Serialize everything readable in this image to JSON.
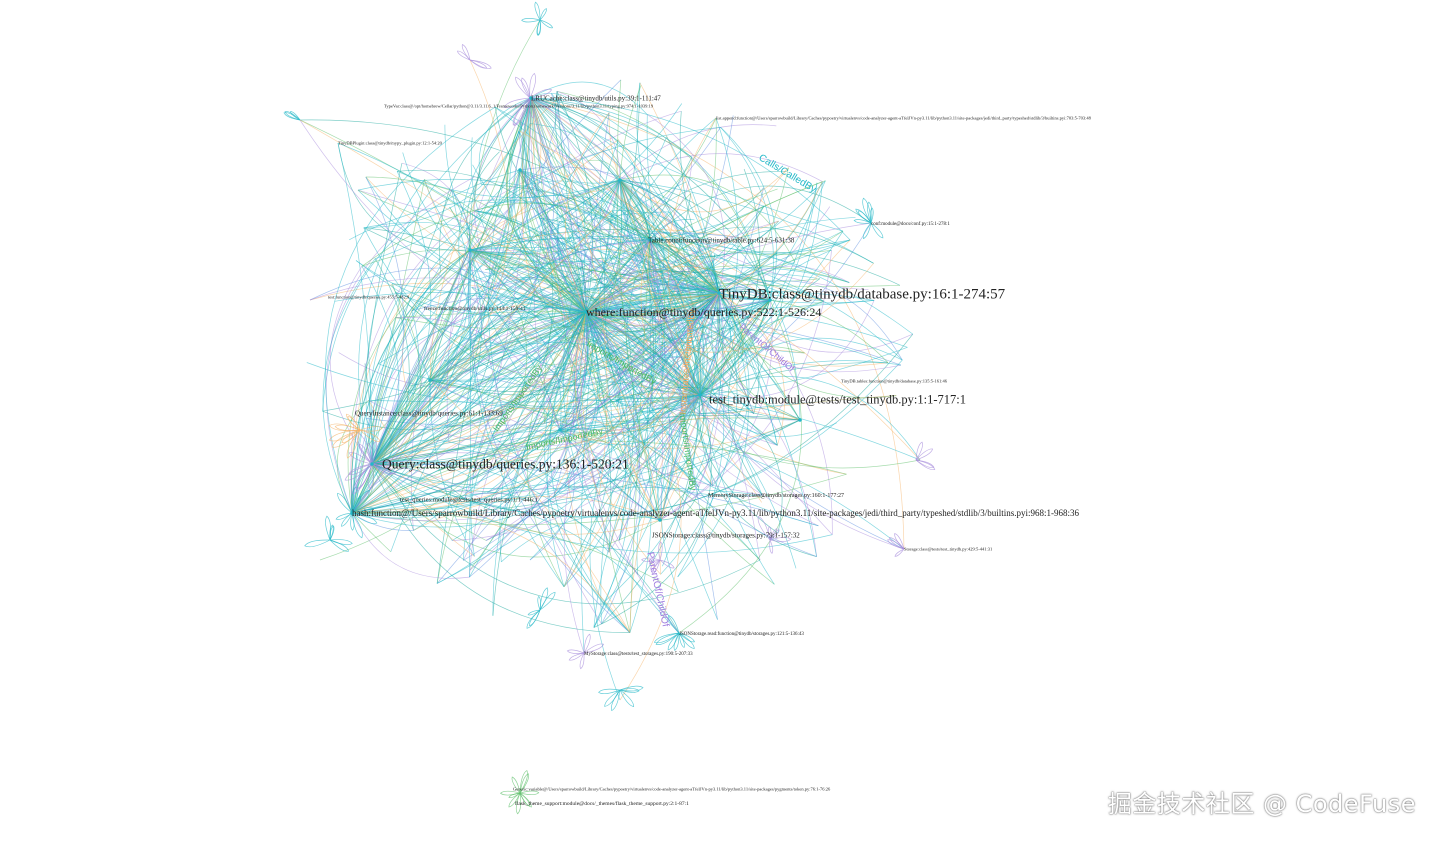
{
  "nodes": [
    {
      "id": "lru",
      "label": "LRUCache:class@tinydb/utils.py:39:1-111:47"
    },
    {
      "id": "typevar",
      "label": "TypeVar:class@/opt/homebrew/Cellar/python@3.11/3.11.6_1/Frameworks/Python.framework/Versions/3.11/lib/python3.11/typing.py:974:1-1039:19"
    },
    {
      "id": "listappend",
      "label": "list.append:function@/Users/sparrowbuild/Library/Caches/pypoetry/virtualenvs/code-analyzer-agent-aTfelJVn-py3.11/lib/python3.11/site-packages/jedi/third_party/typeshed/stdlib/3/builtins.pyi:703:5-703:48"
    },
    {
      "id": "plugin",
      "label": "TinyDBPlugin:class@tinydb/mypy_plugin.py:12:1-54:20"
    },
    {
      "id": "conf",
      "label": "conf:module@docs/conf.py:15:1-278:1"
    },
    {
      "id": "tablecount",
      "label": "Table.count:function@tinydb/table.py:624:5-631:38"
    },
    {
      "id": "tinydb",
      "label": "TinyDB:class@tinydb/database.py:16:1-274:57"
    },
    {
      "id": "where",
      "label": "where:function@tinydb/queries.py:522:1-526:24"
    },
    {
      "id": "test",
      "label": "test:function@tinydb/queries.py:455:5-482:9"
    },
    {
      "id": "freeze",
      "label": "freeze:function@tinydb/utils.py:144:1-159:41"
    },
    {
      "id": "testtinydb",
      "label": "test_tinydb:module@tests/test_tinydb.py:1:1-717:1"
    },
    {
      "id": "tables",
      "label": "TinyDB.tables:function@tinydb/database.py:135:5-161:46"
    },
    {
      "id": "queryinstance",
      "label": "QueryInstance:class@tinydb/queries.py:61:1-133:69"
    },
    {
      "id": "query",
      "label": "Query:class@tinydb/queries.py:136:1-520:21"
    },
    {
      "id": "testqueries",
      "label": "test_queries:module@tests/test_queries.py:1:1-446:1"
    },
    {
      "id": "hash",
      "label": "hash:function@/Users/sparrowbuild/Library/Caches/pypoetry/virtualenvs/code-analyzer-agent-aTfelJVn-py3.11/lib/python3.11/site-packages/jedi/third_party/typeshed/stdlib/3/builtins.pyi:968:1-968:36"
    },
    {
      "id": "memstorage",
      "label": "MemoryStorage:class@tinydb/storages.py:160:1-177:27"
    },
    {
      "id": "jsonstorage",
      "label": "JSONStorage:class@tinydb/storages.py:79:1-157:32"
    },
    {
      "id": "storage",
      "label": "Storage:class@tests/test_tinydb.py:429:5-441:31"
    },
    {
      "id": "jsonread",
      "label": "JSONStorage.read:function@tinydb/storages.py:121:5-136:43"
    },
    {
      "id": "mystorage",
      "label": "MyStorage:class@tests/test_storages.py:190:5-207:33"
    },
    {
      "id": "generic",
      "label": "Generic:variable@/Users/sparrowbuild/Library/Caches/pypoetry/virtualenvs/code-analyzer-agent-aTfelJVn-py3.11/lib/python3.11/site-packages/pygments/token.py:76:1-76:26"
    },
    {
      "id": "flask",
      "label": "flask_theme_support:module@docs/_themes/flask_theme_support.py:2:1-87:1"
    }
  ],
  "edge_labels": [
    {
      "text": "Calls/CalledBy",
      "color": "#22b8c8"
    },
    {
      "text": "ParentOf/ChildOf",
      "color": "#a07ee0"
    },
    {
      "text": "ParentOf/ChildOf",
      "color": "#a07ee0"
    },
    {
      "text": "Imports/ImportedBy",
      "color": "#4cb860"
    },
    {
      "text": "Imports/ImportedBy",
      "color": "#4cb860"
    },
    {
      "text": "Imports/ImportedBy",
      "color": "#4cb860"
    },
    {
      "text": "Imports/ImportedBy",
      "color": "#4cb860"
    },
    {
      "text": "Instantiates/InstantiatedBy",
      "color": "#f2a65a"
    }
  ],
  "edge_colors": [
    "#22b8c8",
    "#1aa89c",
    "#5cbf6a",
    "#a78bdc",
    "#f5b46a",
    "#5f8fe0"
  ],
  "watermark": "掘金技术社区 @ CodeFuse"
}
